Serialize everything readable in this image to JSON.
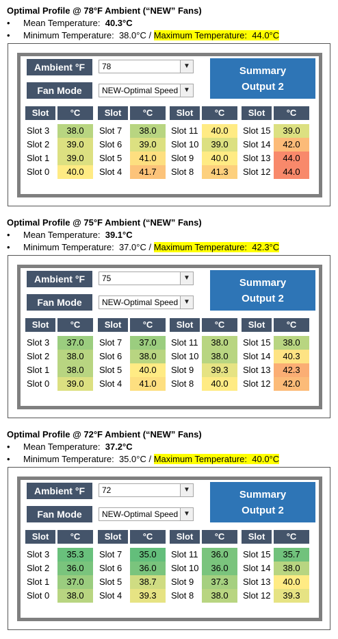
{
  "labels": {
    "ambient": "Ambient °F",
    "fan_mode": "Fan Mode",
    "summary_line1": "Summary",
    "summary_line2": "Output 2",
    "slot_header": "Slot",
    "unit_header": "°C",
    "mean_prefix": "Mean Temperature:",
    "min_prefix": "Minimum Temperature:",
    "max_prefix": "Maximum Temperature:",
    "separator": "/"
  },
  "icons": {
    "bullet": "bullet-dot",
    "dropdown": "dropdown-arrow-icon"
  },
  "colors": {
    "label_bg": "#44546a",
    "summary_bg": "#2e75b6",
    "frame": "#7f7f7f",
    "highlight": "#ffff00",
    "scale": {
      "35.0": "#63be7b",
      "35.3": "#69c07c",
      "35.7": "#71c27c",
      "36.0": "#7ac47d",
      "37.0": "#9bcd7f",
      "37.2": "#a3cf80",
      "37.3": "#a6d080",
      "38.0": "#b8d581",
      "38.7": "#cfdc82",
      "39.0": "#dce081",
      "39.3": "#e6e383",
      "40.0": "#ffeb84",
      "40.3": "#fee383",
      "41.0": "#fddf80",
      "41.3": "#fdd07d",
      "41.7": "#fcc37a",
      "42.0": "#fcbb78",
      "42.3": "#fbae74",
      "44.0": "#f8896b"
    }
  },
  "profiles": [
    {
      "title": "Optimal Profile @ 78°F Ambient (“NEW” Fans)",
      "mean": "40.3°C",
      "min": "38.0°C",
      "max": "44.0°C",
      "ambient_value": "78",
      "fan_mode_value": "NEW-Optimal Speed",
      "groups": [
        [
          [
            "Slot 3",
            "38.0"
          ],
          [
            "Slot 2",
            "39.0"
          ],
          [
            "Slot 1",
            "39.0"
          ],
          [
            "Slot 0",
            "40.0"
          ]
        ],
        [
          [
            "Slot 7",
            "38.0"
          ],
          [
            "Slot 6",
            "39.0"
          ],
          [
            "Slot 5",
            "41.0"
          ],
          [
            "Slot 4",
            "41.7"
          ]
        ],
        [
          [
            "Slot 11",
            "40.0"
          ],
          [
            "Slot 10",
            "39.0"
          ],
          [
            "Slot 9",
            "40.0"
          ],
          [
            "Slot 8",
            "41.3"
          ]
        ],
        [
          [
            "Slot 15",
            "39.0"
          ],
          [
            "Slot 14",
            "42.0"
          ],
          [
            "Slot 13",
            "44.0"
          ],
          [
            "Slot 12",
            "44.0"
          ]
        ]
      ]
    },
    {
      "title": "Optimal Profile @ 75°F Ambient (“NEW” Fans)",
      "mean": "39.1°C",
      "min": "37.0°C",
      "max": "42.3°C",
      "ambient_value": "75",
      "fan_mode_value": "NEW-Optimal Speed",
      "groups": [
        [
          [
            "Slot 3",
            "37.0"
          ],
          [
            "Slot 2",
            "38.0"
          ],
          [
            "Slot 1",
            "38.0"
          ],
          [
            "Slot 0",
            "39.0"
          ]
        ],
        [
          [
            "Slot 7",
            "37.0"
          ],
          [
            "Slot 6",
            "38.0"
          ],
          [
            "Slot 5",
            "40.0"
          ],
          [
            "Slot 4",
            "41.0"
          ]
        ],
        [
          [
            "Slot 11",
            "38.0"
          ],
          [
            "Slot 10",
            "38.0"
          ],
          [
            "Slot 9",
            "39.3"
          ],
          [
            "Slot 8",
            "40.0"
          ]
        ],
        [
          [
            "Slot 15",
            "38.0"
          ],
          [
            "Slot 14",
            "40.3"
          ],
          [
            "Slot 13",
            "42.3"
          ],
          [
            "Slot 12",
            "42.0"
          ]
        ]
      ]
    },
    {
      "title": "Optimal Profile @ 72°F Ambient (“NEW” Fans)",
      "mean": "37.2°C",
      "min": "35.0°C",
      "max": "40.0°C",
      "ambient_value": "72",
      "fan_mode_value": "NEW-Optimal Speed",
      "groups": [
        [
          [
            "Slot 3",
            "35.3"
          ],
          [
            "Slot 2",
            "36.0"
          ],
          [
            "Slot 1",
            "37.0"
          ],
          [
            "Slot 0",
            "38.0"
          ]
        ],
        [
          [
            "Slot 7",
            "35.0"
          ],
          [
            "Slot 6",
            "36.0"
          ],
          [
            "Slot 5",
            "38.7"
          ],
          [
            "Slot 4",
            "39.3"
          ]
        ],
        [
          [
            "Slot 11",
            "36.0"
          ],
          [
            "Slot 10",
            "36.0"
          ],
          [
            "Slot 9",
            "37.3"
          ],
          [
            "Slot 8",
            "38.0"
          ]
        ],
        [
          [
            "Slot 15",
            "35.7"
          ],
          [
            "Slot 14",
            "38.0"
          ],
          [
            "Slot 13",
            "40.0"
          ],
          [
            "Slot 12",
            "39.3"
          ]
        ]
      ]
    }
  ]
}
